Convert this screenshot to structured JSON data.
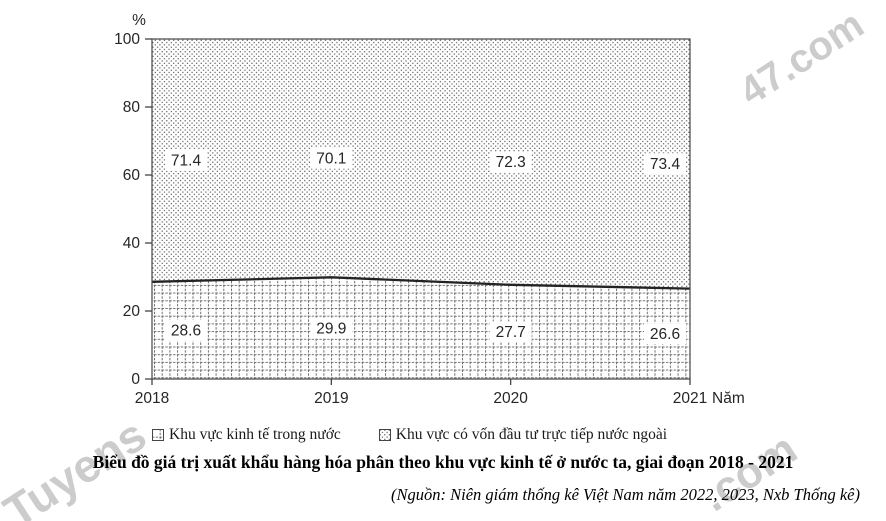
{
  "chart_data": {
    "type": "area",
    "stacked": true,
    "percent_stacked": true,
    "title": "Biểu đồ giá trị xuất khẩu hàng hóa phân theo khu vực kinh tế ở nước ta, giai đoạn 2018 - 2021",
    "source_note": "(Nguồn: Niên giám thống kê Việt Nam năm 2022, 2023, Nxb Thống kê)",
    "unit_label": "%",
    "x_axis_suffix": "Năm",
    "categories": [
      "2018",
      "2019",
      "2020",
      "2021"
    ],
    "series": [
      {
        "name": "Khu vực kinh tế trong nước",
        "pattern": "grid-pattern-icon",
        "values": [
          28.6,
          29.9,
          27.7,
          26.6
        ]
      },
      {
        "name": "Khu vực có vốn đầu tư trực tiếp nước ngoài",
        "pattern": "dots-pattern-icon",
        "values": [
          71.4,
          70.1,
          72.3,
          73.4
        ]
      }
    ],
    "ylim": [
      0,
      100
    ],
    "yticks": [
      0,
      20,
      40,
      60,
      80,
      100
    ],
    "grid": false,
    "legend_position": "bottom"
  },
  "watermarks": {
    "top_right": "47.com",
    "bottom_left": "Tuyens",
    "bottom_right": ".com"
  },
  "colors": {
    "ink": "#262626",
    "axis": "#454545",
    "boundary_line": "#232323",
    "pattern_ink": "#4a4a4a",
    "watermark": "#c7c7c7",
    "background": "#ffffff"
  }
}
